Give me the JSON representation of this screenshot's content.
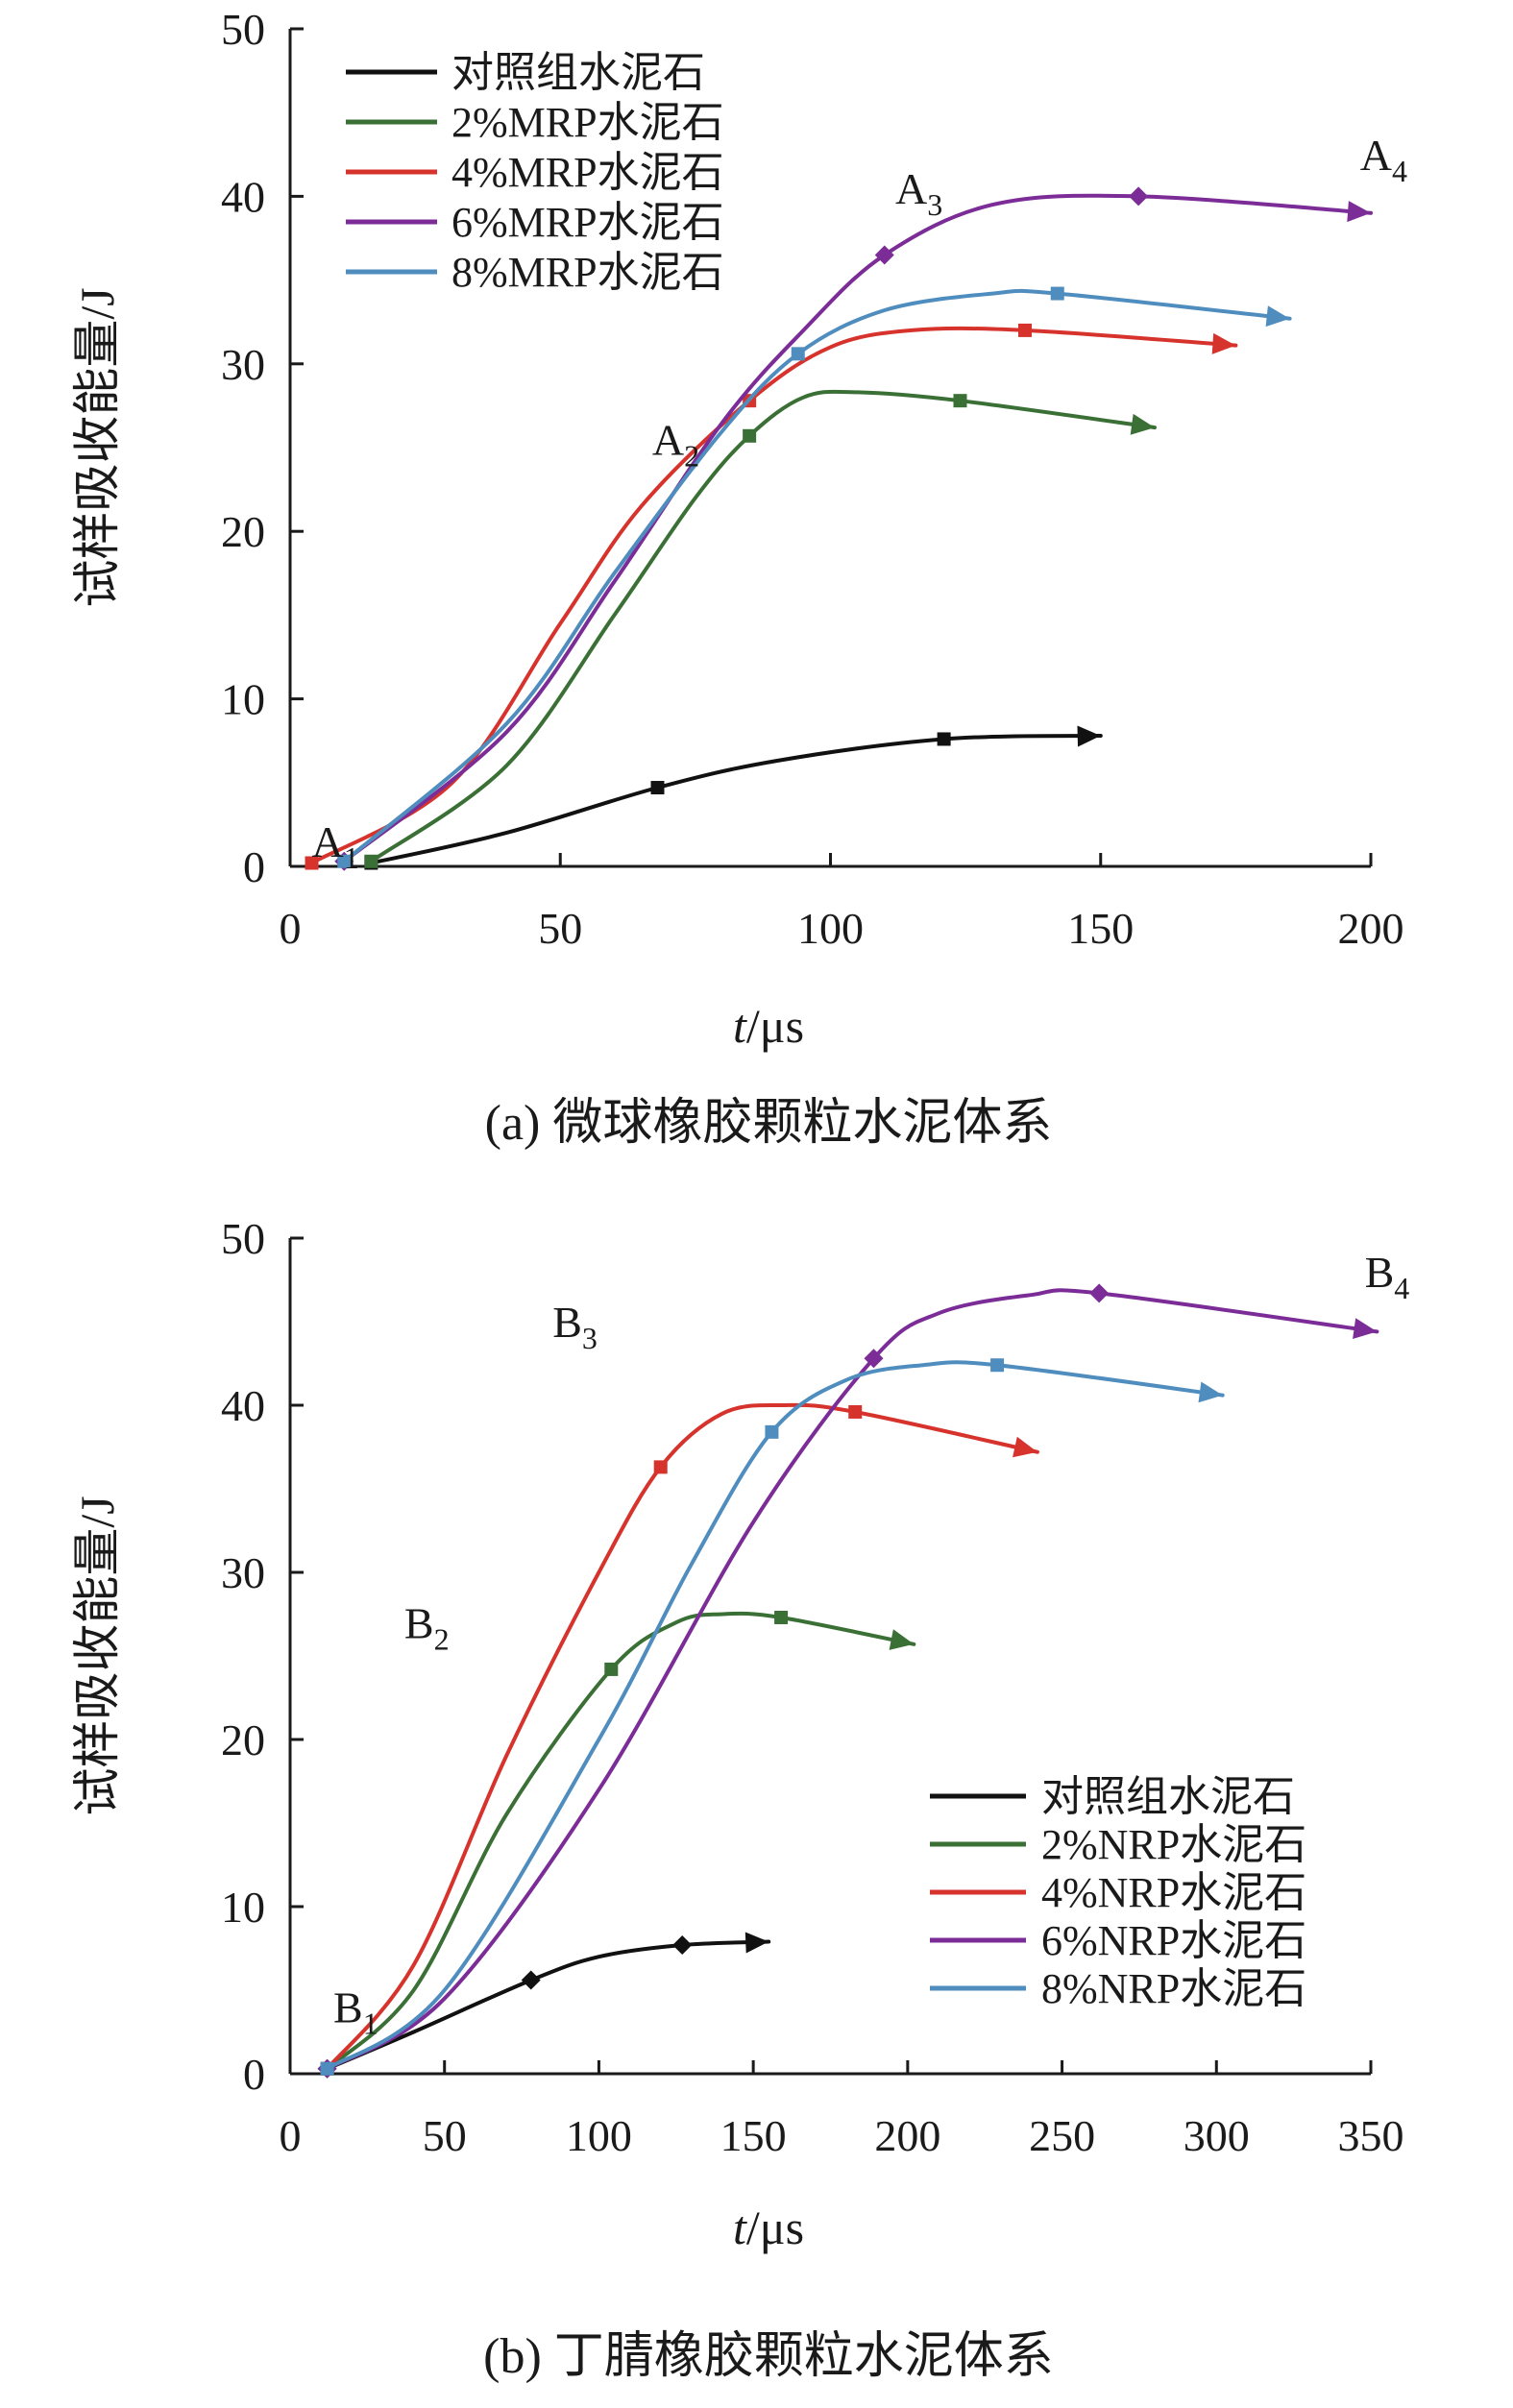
{
  "chart_data": [
    {
      "type": "line",
      "caption": "(a) 微球橡胶颗粒水泥体系",
      "xlabel_italic": "t",
      "xlabel_rest": "/μs",
      "ylabel": "试样吸收能量/J",
      "xlim": [
        0,
        200
      ],
      "ylim": [
        0,
        50
      ],
      "x_ticks": [
        0,
        50,
        100,
        150,
        200
      ],
      "y_ticks": [
        0,
        10,
        20,
        30,
        40,
        50
      ],
      "legend_position": "top-left",
      "annotations": [
        {
          "main": "A",
          "sub": "1",
          "x": 4,
          "y": 0
        },
        {
          "main": "A",
          "sub": "2",
          "x": 67,
          "y": 24
        },
        {
          "main": "A",
          "sub": "3",
          "x": 112,
          "y": 39
        },
        {
          "main": "A",
          "sub": "4",
          "x": 198,
          "y": 41
        }
      ],
      "series": [
        {
          "name": "对照组水泥石",
          "color": "#111111",
          "x": [
            15,
            40,
            68,
            90,
            121,
            150
          ],
          "y": [
            0.2,
            2.0,
            4.7,
            6.3,
            7.6,
            7.8
          ],
          "markers": [
            15,
            68,
            121
          ],
          "marker_shape": "square"
        },
        {
          "name": "2%MRP水泥石",
          "color": "#3a7035",
          "x": [
            15,
            40,
            60,
            75,
            85,
            95,
            105,
            124,
            160
          ],
          "y": [
            0.3,
            6.0,
            15.0,
            22.0,
            25.7,
            28.0,
            28.3,
            27.8,
            26.2
          ],
          "markers": [
            15,
            85,
            124
          ],
          "marker_shape": "square"
        },
        {
          "name": "4%MRP水泥石",
          "color": "#d7332d",
          "x": [
            4,
            30,
            50,
            65,
            85,
            100,
            115,
            136,
            175
          ],
          "y": [
            0.2,
            5.0,
            14.5,
            21.5,
            27.8,
            31.0,
            32.0,
            32.0,
            31.1
          ],
          "markers": [
            4,
            85,
            136
          ],
          "marker_shape": "square"
        },
        {
          "name": "6%MRP水泥石",
          "color": "#7b2c97",
          "x": [
            10,
            40,
            60,
            80,
            95,
            110,
            130,
            157,
            200
          ],
          "y": [
            0.3,
            8.0,
            17.0,
            26.5,
            32.0,
            36.5,
            39.5,
            40.0,
            39.0
          ],
          "markers": [
            10,
            110,
            157
          ],
          "marker_shape": "diamond"
        },
        {
          "name": "8%MRP水泥石",
          "color": "#4f8dbf",
          "x": [
            10,
            40,
            60,
            80,
            94,
            110,
            130,
            142,
            185
          ],
          "y": [
            0.3,
            8.5,
            17.5,
            26.0,
            30.6,
            33.2,
            34.2,
            34.2,
            32.7
          ],
          "markers": [
            10,
            94,
            142
          ],
          "marker_shape": "square"
        }
      ]
    },
    {
      "type": "line",
      "caption": "(b) 丁腈橡胶颗粒水泥体系",
      "xlabel_italic": "t",
      "xlabel_rest": "/μs",
      "ylabel": "试样吸收能量/J",
      "xlim": [
        0,
        350
      ],
      "ylim": [
        0,
        50
      ],
      "x_ticks": [
        0,
        50,
        100,
        150,
        200,
        250,
        300,
        350
      ],
      "y_ticks": [
        0,
        10,
        20,
        30,
        40,
        50
      ],
      "legend_position": "bottom-right",
      "annotations": [
        {
          "main": "B",
          "sub": "1",
          "x": 14,
          "y": 2.5
        },
        {
          "main": "B",
          "sub": "2",
          "x": 37,
          "y": 25.5
        },
        {
          "main": "B",
          "sub": "3",
          "x": 85,
          "y": 43.5
        },
        {
          "main": "B",
          "sub": "4",
          "x": 348,
          "y": 46.5
        }
      ],
      "series": [
        {
          "name": "对照组水泥石",
          "color": "#111111",
          "x": [
            12,
            40,
            78,
            100,
            127,
            155
          ],
          "y": [
            0.3,
            2.5,
            5.6,
            7.0,
            7.7,
            7.9
          ],
          "markers": [
            12,
            78,
            127
          ],
          "marker_shape": "diamond"
        },
        {
          "name": "2%NRP水泥石",
          "color": "#3a7035",
          "x": [
            12,
            40,
            70,
            104,
            125,
            140,
            159,
            202
          ],
          "y": [
            0.3,
            5.0,
            15.5,
            24.2,
            27.0,
            27.5,
            27.3,
            25.7
          ],
          "markers": [
            12,
            104,
            159
          ],
          "marker_shape": "square"
        },
        {
          "name": "4%NRP水泥石",
          "color": "#d7332d",
          "x": [
            12,
            40,
            70,
            100,
            120,
            140,
            160,
            183,
            242
          ],
          "y": [
            0.3,
            6.5,
            19.0,
            30.0,
            36.3,
            39.5,
            40.0,
            39.6,
            37.2
          ],
          "markers": [
            12,
            120,
            183
          ],
          "marker_shape": "square"
        },
        {
          "name": "6%NRP水泥石",
          "color": "#7b2c97",
          "x": [
            12,
            50,
            100,
            150,
            189,
            210,
            240,
            262,
            352
          ],
          "y": [
            0.3,
            4.5,
            17.0,
            33.0,
            42.8,
            45.5,
            46.6,
            46.7,
            44.4
          ],
          "markers": [
            12,
            189,
            262
          ],
          "marker_shape": "diamond"
        },
        {
          "name": "8%NRP水泥石",
          "color": "#4f8dbf",
          "x": [
            12,
            50,
            100,
            130,
            156,
            180,
            205,
            229,
            302
          ],
          "y": [
            0.3,
            5.0,
            20.0,
            30.5,
            38.4,
            41.5,
            42.4,
            42.4,
            40.6
          ],
          "markers": [
            12,
            156,
            229
          ],
          "marker_shape": "square"
        }
      ]
    }
  ]
}
